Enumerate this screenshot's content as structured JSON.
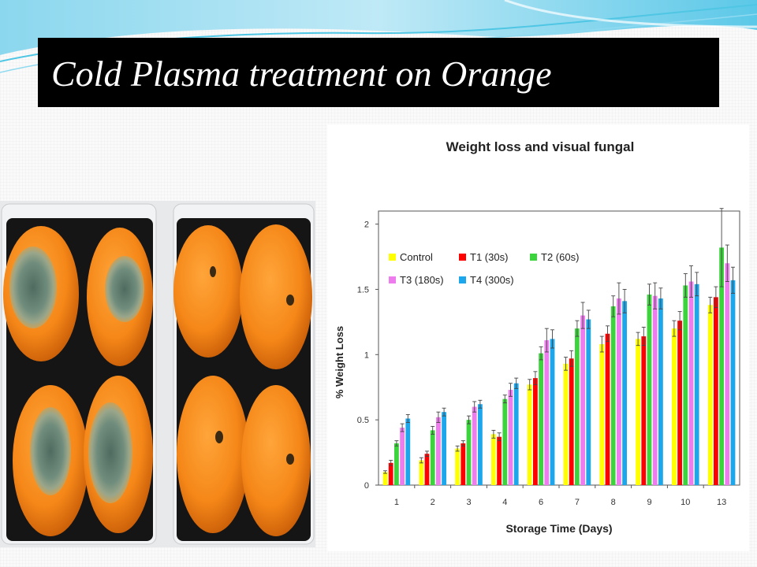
{
  "slide": {
    "title": "Cold Plasma treatment on Orange"
  },
  "colors": {
    "title_bg": "#000000",
    "title_text": "#ffffff",
    "wave_accent": "#4fc6e4"
  },
  "photo": {
    "subject": "eight oranges in two clear plastic trays; left tray oranges show green mould patches, right tray oranges are clean"
  },
  "chart_data": {
    "type": "bar",
    "title": "Weight loss and visual fungal",
    "xlabel": "Storage Time (Days)",
    "ylabel": "% Weight Loss",
    "ylim": [
      0,
      2.1
    ],
    "yticks": [
      "0",
      "0.5",
      "1",
      "1.5",
      "2"
    ],
    "categories": [
      "1",
      "2",
      "3",
      "4",
      "6",
      "7",
      "8",
      "9",
      "10",
      "13"
    ],
    "legend_position": "top-left",
    "grid": false,
    "error_bars": true,
    "series": [
      {
        "name": "Control",
        "color": "#ffff00",
        "values": [
          0.1,
          0.19,
          0.28,
          0.39,
          0.77,
          0.93,
          1.08,
          1.12,
          1.2,
          1.38
        ],
        "errors": [
          0.01,
          0.02,
          0.02,
          0.03,
          0.04,
          0.05,
          0.06,
          0.05,
          0.06,
          0.06
        ]
      },
      {
        "name": "T1 (30s)",
        "color": "#ff0000",
        "values": [
          0.17,
          0.24,
          0.32,
          0.37,
          0.82,
          0.97,
          1.16,
          1.14,
          1.26,
          1.44
        ],
        "errors": [
          0.02,
          0.02,
          0.02,
          0.03,
          0.05,
          0.06,
          0.06,
          0.07,
          0.07,
          0.08
        ]
      },
      {
        "name": "T2 (60s)",
        "color": "#3cd43c",
        "values": [
          0.32,
          0.42,
          0.5,
          0.66,
          1.01,
          1.2,
          1.37,
          1.46,
          1.53,
          1.82
        ],
        "errors": [
          0.02,
          0.03,
          0.03,
          0.03,
          0.05,
          0.06,
          0.08,
          0.08,
          0.09,
          0.3
        ]
      },
      {
        "name": "T3 (180s)",
        "color": "#ee7cee",
        "values": [
          0.44,
          0.52,
          0.6,
          0.73,
          1.11,
          1.3,
          1.43,
          1.45,
          1.56,
          1.7
        ],
        "errors": [
          0.03,
          0.04,
          0.04,
          0.05,
          0.09,
          0.1,
          0.12,
          0.1,
          0.12,
          0.14
        ]
      },
      {
        "name": "T4 (300s)",
        "color": "#1ca6ec",
        "values": [
          0.51,
          0.56,
          0.62,
          0.78,
          1.12,
          1.27,
          1.41,
          1.43,
          1.54,
          1.57
        ],
        "errors": [
          0.03,
          0.03,
          0.03,
          0.04,
          0.07,
          0.07,
          0.09,
          0.08,
          0.09,
          0.1
        ]
      }
    ]
  }
}
